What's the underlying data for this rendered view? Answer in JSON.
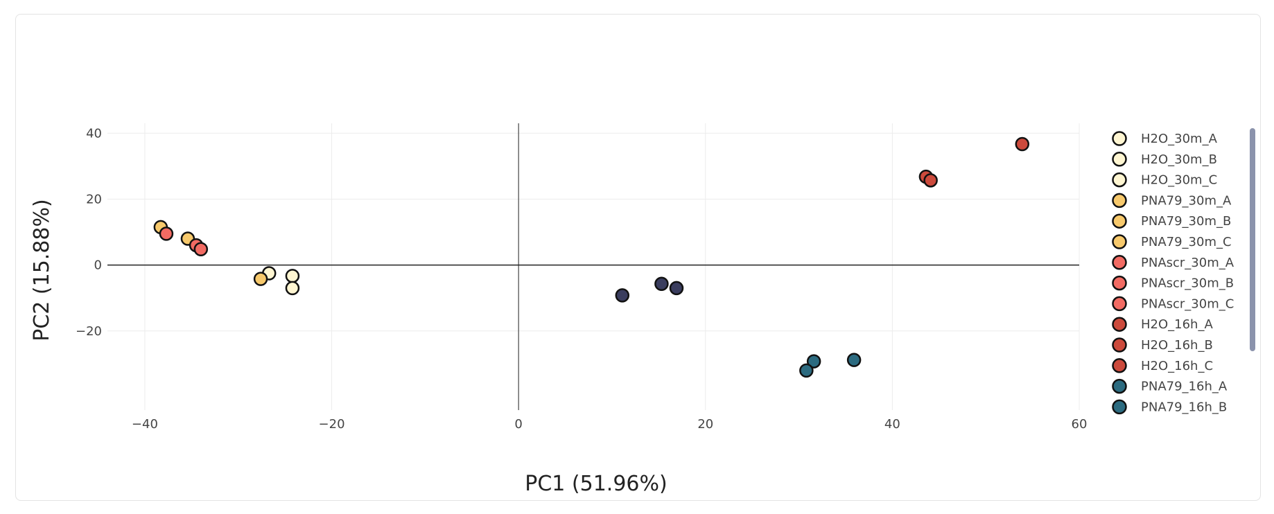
{
  "chart_data": {
    "type": "scatter",
    "xlabel": "PC1 (51.96%)",
    "ylabel": "PC2 (15.88%)",
    "xlim": [
      -44,
      60
    ],
    "ylim": [
      -44,
      43
    ],
    "x_ticks": [
      -40,
      -20,
      0,
      20,
      40,
      60
    ],
    "y_ticks": [
      -20,
      0,
      20,
      40
    ],
    "x_tick_labels": [
      "−40",
      "−20",
      "0",
      "20",
      "40",
      "60"
    ],
    "y_tick_labels": [
      "−20",
      "0",
      "20",
      "40"
    ],
    "grid": true,
    "legend_position": "right",
    "series": [
      {
        "name": "H2O_30m_A",
        "color": "#fff6d2",
        "points": [
          [
            -26.7,
            -2.5
          ]
        ]
      },
      {
        "name": "H2O_30m_B",
        "color": "#fff6d2",
        "points": [
          [
            -24.2,
            -3.3
          ]
        ]
      },
      {
        "name": "H2O_30m_C",
        "color": "#fff6d2",
        "points": [
          [
            -24.2,
            -7.0
          ]
        ]
      },
      {
        "name": "PNA79_30m_A",
        "color": "#f7c96c",
        "points": [
          [
            -38.3,
            11.5
          ]
        ]
      },
      {
        "name": "PNA79_30m_B",
        "color": "#f7c96c",
        "points": [
          [
            -35.4,
            8.0
          ]
        ]
      },
      {
        "name": "PNA79_30m_C",
        "color": "#f7c96c",
        "points": [
          [
            -27.6,
            -4.2
          ]
        ]
      },
      {
        "name": "PNAscr_30m_A",
        "color": "#f26b63",
        "points": [
          [
            -37.7,
            9.5
          ]
        ]
      },
      {
        "name": "PNAscr_30m_B",
        "color": "#f26b63",
        "points": [
          [
            -34.5,
            6.0
          ]
        ]
      },
      {
        "name": "PNAscr_30m_C",
        "color": "#f26b63",
        "points": [
          [
            -34.0,
            4.8
          ]
        ]
      },
      {
        "name": "H2O_16h_A",
        "color": "#cc4a3c",
        "points": [
          [
            53.9,
            36.7
          ]
        ]
      },
      {
        "name": "H2O_16h_B",
        "color": "#cc4a3c",
        "points": [
          [
            43.6,
            26.8
          ]
        ]
      },
      {
        "name": "H2O_16h_C",
        "color": "#cc4a3c",
        "points": [
          [
            44.1,
            25.7
          ]
        ]
      },
      {
        "name": "PNA79_16h_A",
        "color": "#2c6b80",
        "points": [
          [
            35.9,
            -28.8
          ]
        ]
      },
      {
        "name": "PNA79_16h_B",
        "color": "#2c6b80",
        "points": [
          [
            31.6,
            -29.2
          ]
        ]
      },
      {
        "name": "",
        "color": "#2c6b80",
        "points": [
          [
            30.8,
            -32.0
          ]
        ]
      },
      {
        "name": "",
        "color": "#3a3d5e",
        "points": [
          [
            11.1,
            -9.2
          ]
        ]
      },
      {
        "name": "",
        "color": "#3a3d5e",
        "points": [
          [
            15.3,
            -5.7
          ]
        ]
      },
      {
        "name": "",
        "color": "#3a3d5e",
        "points": [
          [
            16.9,
            -7.0
          ]
        ]
      }
    ]
  }
}
